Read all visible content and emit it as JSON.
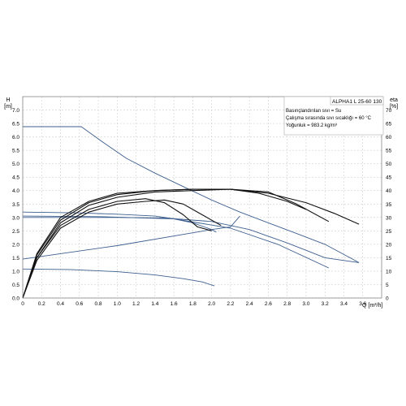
{
  "chart_data": {
    "type": "line",
    "product_title": "ALPHA1 L 25-60 130",
    "info_lines": [
      "Basınçlandırılan sıvı = Su",
      "Çalışma sırasında sıvı sıcaklığı = 60 °C",
      "Yoğunluk = 983.2 kg/m³"
    ],
    "y_left": {
      "label": "H",
      "unit": "[m]",
      "min": 0,
      "max": 7.5,
      "ticks": [
        "0.0",
        "0.5",
        "1.0",
        "1.5",
        "2.0",
        "2.5",
        "3.0",
        "3.5",
        "4.0",
        "4.5",
        "5.0",
        "5.5",
        "6.0",
        "6.5",
        "7.0"
      ]
    },
    "y_right": {
      "label": "eta",
      "unit": "[%]",
      "min": 0,
      "max": 75,
      "ticks": [
        "0",
        "5",
        "10",
        "15",
        "20",
        "25",
        "30",
        "35",
        "40",
        "45",
        "50",
        "55",
        "60",
        "65",
        "70"
      ]
    },
    "x_axis": {
      "label": "Q [m³/h]",
      "min": 0,
      "max": 3.8,
      "ticks": [
        "0",
        "0.2",
        "0.4",
        "0.6",
        "0.8",
        "1.0",
        "1.2",
        "1.4",
        "1.6",
        "1.8",
        "2.0",
        "2.2",
        "2.4",
        "2.6",
        "2.8",
        "3.0",
        "3.2",
        "3.4",
        "3.6"
      ]
    },
    "grid": true,
    "colors": {
      "head_curves": "#3d5f8f",
      "efficiency_curves": "#111111",
      "grid": "#c6c6c6"
    },
    "series": [
      {
        "axis": "left",
        "points": [
          [
            0,
            6.38
          ],
          [
            0.62,
            6.38
          ],
          [
            0.85,
            5.8
          ],
          [
            1.1,
            5.2
          ],
          [
            1.4,
            4.65
          ],
          [
            1.7,
            4.15
          ],
          [
            2.0,
            3.65
          ],
          [
            2.3,
            3.2
          ],
          [
            2.6,
            2.8
          ],
          [
            2.9,
            2.4
          ],
          [
            3.2,
            2.0
          ],
          [
            3.56,
            1.32
          ]
        ]
      },
      {
        "axis": "left",
        "points": [
          [
            0,
            3.2
          ],
          [
            0.6,
            3.17
          ],
          [
            1.0,
            3.12
          ],
          [
            1.4,
            3.05
          ],
          [
            1.6,
            2.95
          ],
          [
            1.8,
            2.8
          ],
          [
            2.0,
            2.55
          ],
          [
            2.05,
            2.45
          ]
        ]
      },
      {
        "axis": "left",
        "points": [
          [
            0,
            3.0
          ],
          [
            1.0,
            3.0
          ],
          [
            1.5,
            2.98
          ],
          [
            2.0,
            2.85
          ],
          [
            2.4,
            2.55
          ],
          [
            2.8,
            2.05
          ],
          [
            3.2,
            1.5
          ],
          [
            3.56,
            1.32
          ]
        ]
      },
      {
        "axis": "left",
        "points": [
          [
            0,
            3.05
          ],
          [
            0.8,
            3.03
          ],
          [
            1.6,
            2.95
          ],
          [
            2.2,
            2.6
          ],
          [
            2.7,
            2.0
          ],
          [
            3.24,
            1.12
          ]
        ]
      },
      {
        "axis": "left",
        "points": [
          [
            0,
            1.45
          ],
          [
            1.0,
            1.95
          ],
          [
            2.0,
            2.55
          ],
          [
            2.2,
            2.65
          ],
          [
            2.3,
            3.05
          ]
        ]
      },
      {
        "axis": "left",
        "points": [
          [
            0,
            1.08
          ],
          [
            0.5,
            1.06
          ],
          [
            1.0,
            0.98
          ],
          [
            1.4,
            0.86
          ],
          [
            1.7,
            0.72
          ],
          [
            1.9,
            0.6
          ],
          [
            2.03,
            0.45
          ]
        ]
      },
      {
        "axis": "right",
        "points": [
          [
            0,
            0
          ],
          [
            0.15,
            15
          ],
          [
            0.4,
            27
          ],
          [
            0.7,
            33
          ],
          [
            1.0,
            36
          ],
          [
            1.3,
            37
          ],
          [
            1.5,
            35.5
          ],
          [
            1.7,
            31
          ],
          [
            1.85,
            26.5
          ],
          [
            2.0,
            25
          ]
        ]
      },
      {
        "axis": "right",
        "points": [
          [
            0,
            0
          ],
          [
            0.15,
            14
          ],
          [
            0.4,
            26
          ],
          [
            0.7,
            32
          ],
          [
            1.0,
            35
          ],
          [
            1.3,
            36
          ],
          [
            1.5,
            36.5
          ],
          [
            1.7,
            35
          ],
          [
            1.9,
            31
          ],
          [
            2.1,
            27
          ]
        ]
      },
      {
        "axis": "right",
        "points": [
          [
            0,
            0
          ],
          [
            0.15,
            15
          ],
          [
            0.4,
            28
          ],
          [
            0.7,
            34.5
          ],
          [
            1.0,
            37.5
          ],
          [
            1.4,
            39.5
          ],
          [
            1.8,
            40
          ],
          [
            2.2,
            40.5
          ],
          [
            2.5,
            39
          ],
          [
            2.8,
            36
          ],
          [
            3.0,
            33
          ]
        ]
      },
      {
        "axis": "right",
        "points": [
          [
            0,
            0
          ],
          [
            0.15,
            16
          ],
          [
            0.4,
            29
          ],
          [
            0.7,
            35.5
          ],
          [
            1.0,
            38.5
          ],
          [
            1.4,
            40
          ],
          [
            1.8,
            40.5
          ],
          [
            2.2,
            40.5
          ],
          [
            2.6,
            39.5
          ],
          [
            2.9,
            35
          ],
          [
            3.24,
            28.5
          ]
        ]
      },
      {
        "axis": "right",
        "points": [
          [
            0,
            0
          ],
          [
            0.15,
            16.5
          ],
          [
            0.4,
            30
          ],
          [
            0.7,
            36
          ],
          [
            1.0,
            39
          ],
          [
            1.4,
            40
          ],
          [
            1.8,
            40.5
          ],
          [
            2.2,
            40.5
          ],
          [
            2.6,
            39
          ],
          [
            3.0,
            35.5
          ],
          [
            3.3,
            31.5
          ],
          [
            3.56,
            27.5
          ]
        ]
      }
    ]
  }
}
